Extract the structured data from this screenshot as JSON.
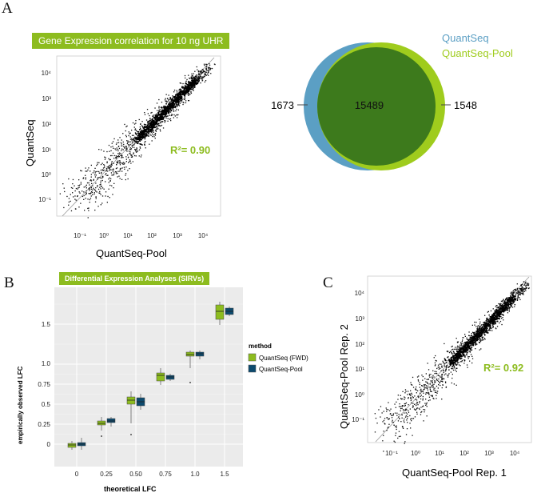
{
  "colors": {
    "green": "#8dbc1f",
    "blue": "#0c4a6e",
    "venn_blue": "#5b9fc4",
    "venn_dark": "#3d7a1c",
    "venn_light": "#9fcc1d",
    "panel_bg": "#ebebeb"
  },
  "panel_a": {
    "letter": "A",
    "scatter": {
      "banner": "Gene Expression correlation for 10 ng UHR",
      "ylabel": "QuantSeq",
      "xlabel": "QuantSeq-Pool",
      "r2": "R²= 0.90",
      "y_ticks": [
        "10⁻¹",
        "10⁰",
        "10¹",
        "10²",
        "10³",
        "10⁴"
      ],
      "x_ticks": [
        "10⁻¹",
        "10⁰",
        "10¹",
        "10²",
        "10³",
        "10⁴"
      ]
    },
    "venn": {
      "legend_a": "QuantSeq",
      "legend_b": "QuantSeq-Pool",
      "left_only": "1673",
      "overlap": "15489",
      "right_only": "1548"
    }
  },
  "panel_b": {
    "letter": "B",
    "banner": "Differential Expression Analyses (SIRVs)",
    "ylabel": "empirically observed LFC",
    "xlabel": "theoretical LFC",
    "legend_title": "method",
    "chart_data": {
      "type": "box",
      "categories": [
        "0",
        "0.25",
        "0.50",
        "0.75",
        "1.0",
        "1.5"
      ],
      "y_ticks": [
        "0",
        "0.25",
        "0.5",
        "0.75",
        "1.0",
        "1.5"
      ],
      "series": [
        {
          "name": "QuantSeq (FWD)",
          "boxes": [
            {
              "wlo": -0.07,
              "q1": -0.04,
              "med": -0.01,
              "q3": 0.01,
              "whi": 0.04
            },
            {
              "wlo": 0.17,
              "q1": 0.24,
              "med": 0.26,
              "q3": 0.29,
              "whi": 0.34
            },
            {
              "wlo": 0.26,
              "q1": 0.5,
              "med": 0.55,
              "q3": 0.59,
              "whi": 0.66
            },
            {
              "wlo": 0.74,
              "q1": 0.79,
              "med": 0.86,
              "q3": 0.89,
              "whi": 0.95
            },
            {
              "wlo": 0.95,
              "q1": 1.1,
              "med": 1.12,
              "q3": 1.15,
              "whi": 1.17
            },
            {
              "wlo": 1.49,
              "q1": 1.56,
              "med": 1.66,
              "q3": 1.74,
              "whi": 1.78
            }
          ],
          "outliers": [
            [
              0.25,
              0.1
            ],
            [
              0.5,
              0.12
            ],
            [
              1.0,
              0.77
            ]
          ]
        },
        {
          "name": "QuantSeq-Pool",
          "boxes": [
            {
              "wlo": -0.07,
              "q1": -0.02,
              "med": 0.0,
              "q3": 0.02,
              "whi": 0.08
            },
            {
              "wlo": 0.22,
              "q1": 0.27,
              "med": 0.29,
              "q3": 0.32,
              "whi": 0.34
            },
            {
              "wlo": 0.43,
              "q1": 0.48,
              "med": 0.53,
              "q3": 0.58,
              "whi": 0.63
            },
            {
              "wlo": 0.79,
              "q1": 0.81,
              "med": 0.84,
              "q3": 0.86,
              "whi": 0.88
            },
            {
              "wlo": 1.06,
              "q1": 1.1,
              "med": 1.13,
              "q3": 1.15,
              "whi": 1.17
            },
            {
              "wlo": 1.6,
              "q1": 1.62,
              "med": 1.66,
              "q3": 1.7,
              "whi": 1.72
            }
          ],
          "outliers": []
        }
      ]
    }
  },
  "panel_c": {
    "letter": "C",
    "ylabel": "QuantSeq-Pool Rep. 2",
    "xlabel": "QuantSeq-Pool Rep. 1",
    "r2": "R²= 0.92",
    "y_ticks": [
      "10⁻¹",
      "10⁰",
      "10¹",
      "10²",
      "10³",
      "10⁴"
    ],
    "x_ticks": [
      "10⁻¹",
      "10⁰",
      "10¹",
      "10²",
      "10³",
      "10⁴"
    ]
  }
}
